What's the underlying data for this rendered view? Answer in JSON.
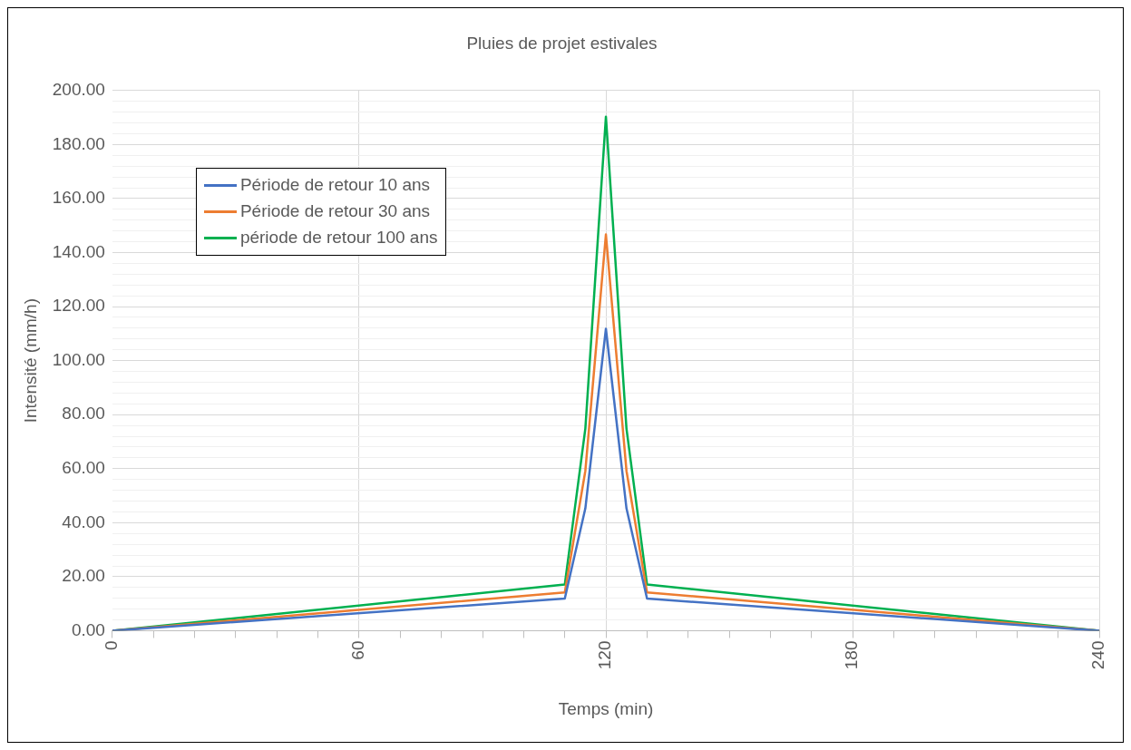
{
  "chart_data": {
    "type": "line",
    "title": "Pluies de projet estivales",
    "xlabel": "Temps (min)",
    "ylabel": "Intensité (mm/h)",
    "x": [
      0,
      110,
      115,
      120,
      125,
      130,
      240
    ],
    "series": [
      {
        "name": "Période de retour 10 ans",
        "color": "#4472c4",
        "values": [
          0,
          11.9,
          45.3,
          111.8,
          45.3,
          11.9,
          0
        ]
      },
      {
        "name": "Période de retour 30 ans",
        "color": "#ed7d31",
        "values": [
          0,
          14.2,
          59.2,
          146.7,
          59.2,
          14.2,
          0
        ]
      },
      {
        "name": "période de retour 100 ans",
        "color": "#00b050",
        "values": [
          0,
          17.1,
          74.8,
          190.3,
          74.8,
          17.1,
          0
        ]
      }
    ],
    "xlim": [
      0,
      240
    ],
    "xticks": [
      0,
      {
        "value": 10,
        "label": null
      },
      {
        "value": 20,
        "label": null
      },
      {
        "value": 30,
        "label": null
      },
      {
        "value": 40,
        "label": null
      },
      {
        "value": 50,
        "label": null
      },
      60,
      {
        "value": 70,
        "label": null
      },
      {
        "value": 80,
        "label": null
      },
      {
        "value": 90,
        "label": null
      },
      {
        "value": 100,
        "label": null
      },
      {
        "value": 110,
        "label": null
      },
      120,
      {
        "value": 130,
        "label": null
      },
      {
        "value": 140,
        "label": null
      },
      {
        "value": 150,
        "label": null
      },
      {
        "value": 160,
        "label": null
      },
      {
        "value": 170,
        "label": null
      },
      180,
      {
        "value": 190,
        "label": null
      },
      {
        "value": 200,
        "label": null
      },
      {
        "value": 210,
        "label": null
      },
      {
        "value": 220,
        "label": null
      },
      {
        "value": 230,
        "label": null
      },
      240
    ],
    "ylim": [
      0,
      200
    ],
    "yticks": [
      {
        "value": 0,
        "label": "0.00"
      },
      {
        "value": 20,
        "label": "20.00"
      },
      {
        "value": 40,
        "label": "40.00"
      },
      {
        "value": 60,
        "label": "60.00"
      },
      {
        "value": 80,
        "label": "80.00"
      },
      {
        "value": 100,
        "label": "100.00"
      },
      {
        "value": 120,
        "label": "120.00"
      },
      {
        "value": 140,
        "label": "140.00"
      },
      {
        "value": 160,
        "label": "160.00"
      },
      {
        "value": 180,
        "label": "180.00"
      },
      {
        "value": 200,
        "label": "200.00"
      }
    ],
    "grid": true,
    "legend": "top left",
    "marker": "none",
    "line_style": "solid"
  }
}
